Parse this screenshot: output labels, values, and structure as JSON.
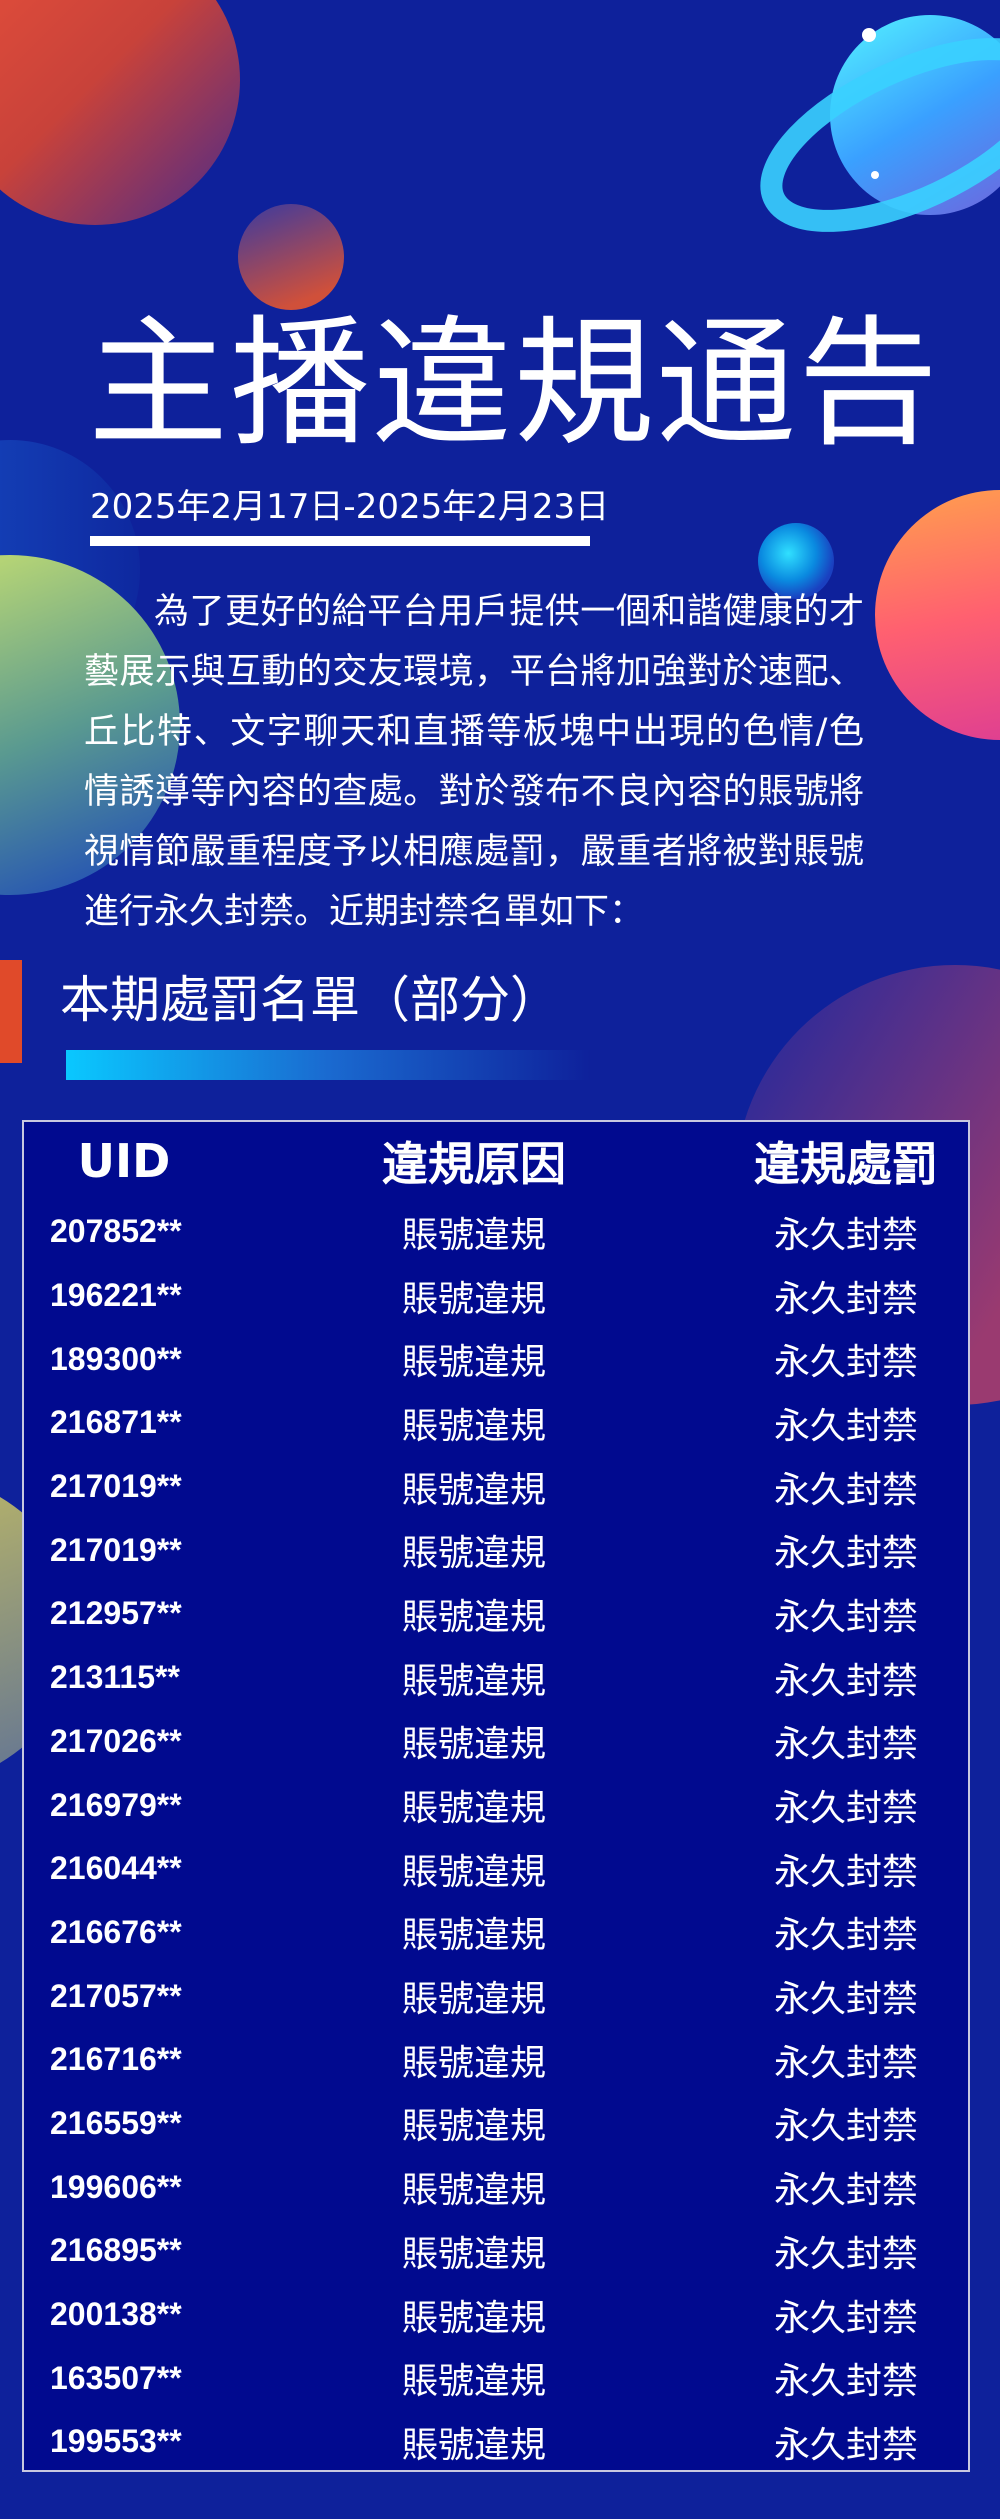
{
  "title": "主播違規通告",
  "date_range": "2025年2月17日-2025年2月23日",
  "intro": "為了更好的給平台用戶提供一個和諧健康的才藝展示與互動的交友環境，平台將加強對於速配、丘比特、文字聊天和直播等板塊中出現的色情/色情誘導等內容的查處。對於發布不良內容的賬號將視情節嚴重程度予以相應處罰，嚴重者將被對賬號進行永久封禁。近期封禁名單如下：",
  "section_title": "本期處罰名單（部分）",
  "table": {
    "headers": [
      "UID",
      "違規原因",
      "違規處罰"
    ],
    "rows": [
      [
        "207852**",
        "賬號違規",
        "永久封禁"
      ],
      [
        "196221**",
        "賬號違規",
        "永久封禁"
      ],
      [
        "189300**",
        "賬號違規",
        "永久封禁"
      ],
      [
        "216871**",
        "賬號違規",
        "永久封禁"
      ],
      [
        "217019**",
        "賬號違規",
        "永久封禁"
      ],
      [
        "217019**",
        "賬號違規",
        "永久封禁"
      ],
      [
        "212957**",
        "賬號違規",
        "永久封禁"
      ],
      [
        "213115**",
        "賬號違規",
        "永久封禁"
      ],
      [
        "217026**",
        "賬號違規",
        "永久封禁"
      ],
      [
        "216979**",
        "賬號違規",
        "永久封禁"
      ],
      [
        "216044**",
        "賬號違規",
        "永久封禁"
      ],
      [
        "216676**",
        "賬號違規",
        "永久封禁"
      ],
      [
        "217057**",
        "賬號違規",
        "永久封禁"
      ],
      [
        "216716**",
        "賬號違規",
        "永久封禁"
      ],
      [
        "216559**",
        "賬號違規",
        "永久封禁"
      ],
      [
        "199606**",
        "賬號違規",
        "永久封禁"
      ],
      [
        "216895**",
        "賬號違規",
        "永久封禁"
      ],
      [
        "200138**",
        "賬號違規",
        "永久封禁"
      ],
      [
        "163507**",
        "賬號違規",
        "永久封禁"
      ],
      [
        "199553**",
        "賬號違規",
        "永久封禁"
      ]
    ]
  },
  "colors": {
    "background": "#0e219b",
    "table_bg": "#010a8f",
    "accent_bar": "#e04a2a",
    "gradient_start": "#0ac8ff"
  }
}
